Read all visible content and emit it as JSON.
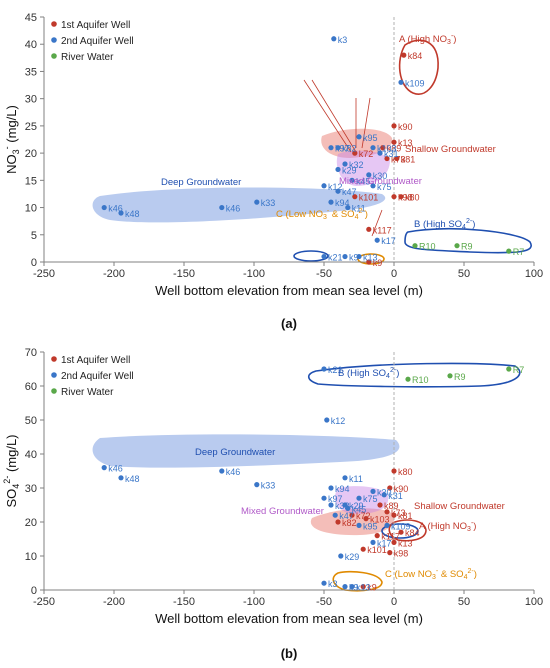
{
  "chart_data": [
    {
      "type": "scatter",
      "panel_label": "(a)",
      "xlabel": "Well bottom elevation from mean sea level (m)",
      "ylabel_main": "NO",
      "ylabel_sub": "3",
      "ylabel_sup": "-",
      "ylabel_unit": " (mg/L)",
      "xlim": [
        -250,
        100
      ],
      "ylim": [
        0,
        45
      ],
      "xticks": [
        -250,
        -200,
        -150,
        -100,
        -50,
        0,
        50,
        100
      ],
      "yticks": [
        0,
        5,
        10,
        15,
        20,
        25,
        30,
        35,
        40,
        45
      ],
      "legend": [
        "1st Aquifer Well",
        "2nd Aquifer Well",
        "River Water"
      ],
      "series": [
        {
          "name": "1st Aquifer Well",
          "color": "#c0392b",
          "points": [
            {
              "label": "k84",
              "x": 7,
              "y": 38
            },
            {
              "label": "k90",
              "x": 0,
              "y": 25
            },
            {
              "label": "k13",
              "x": 0,
              "y": 22
            },
            {
              "label": "k89",
              "x": -8,
              "y": 21
            },
            {
              "label": "k72",
              "x": -28,
              "y": 20
            },
            {
              "label": "k73",
              "x": -5,
              "y": 19
            },
            {
              "label": "k81",
              "x": 2,
              "y": 19
            },
            {
              "label": "k98",
              "x": 0,
              "y": 12
            },
            {
              "label": "k80",
              "x": 5,
              "y": 12
            },
            {
              "label": "k101",
              "x": -28,
              "y": 12
            },
            {
              "label": "k117",
              "x": -18,
              "y": 6
            },
            {
              "label": "k9",
              "x": -18,
              "y": 0
            }
          ]
        },
        {
          "name": "2nd Aquifer Well",
          "color": "#3a76c8",
          "points": [
            {
              "label": "k3",
              "x": -43,
              "y": 41
            },
            {
              "label": "k109",
              "x": 5,
              "y": 33
            },
            {
              "label": "k95",
              "x": -25,
              "y": 23
            },
            {
              "label": "k103",
              "x": -15,
              "y": 21
            },
            {
              "label": "k82",
              "x": -40,
              "y": 21
            },
            {
              "label": "k97",
              "x": -45,
              "y": 21
            },
            {
              "label": "k31",
              "x": -10,
              "y": 20
            },
            {
              "label": "k32",
              "x": -35,
              "y": 18
            },
            {
              "label": "k29",
              "x": -40,
              "y": 17
            },
            {
              "label": "k30",
              "x": -18,
              "y": 16
            },
            {
              "label": "k45",
              "x": -30,
              "y": 15
            },
            {
              "label": "k75",
              "x": -15,
              "y": 14
            },
            {
              "label": "k12",
              "x": -50,
              "y": 14
            },
            {
              "label": "k47",
              "x": -40,
              "y": 13
            },
            {
              "label": "k33",
              "x": -98,
              "y": 11
            },
            {
              "label": "k94",
              "x": -45,
              "y": 11
            },
            {
              "label": "k11",
              "x": -33,
              "y": 10
            },
            {
              "label": "k46",
              "x": -207,
              "y": 10
            },
            {
              "label": "k46",
              "x": -123,
              "y": 10
            },
            {
              "label": "k48",
              "x": -195,
              "y": 9
            },
            {
              "label": "k17",
              "x": -12,
              "y": 4
            },
            {
              "label": "k21",
              "x": -50,
              "y": 1
            },
            {
              "label": "k13",
              "x": -25,
              "y": 1
            },
            {
              "label": "k9",
              "x": -35,
              "y": 1
            }
          ]
        },
        {
          "name": "River Water",
          "color": "#5aa84a",
          "points": [
            {
              "label": "R10",
              "x": 15,
              "y": 3
            },
            {
              "label": "R9",
              "x": 45,
              "y": 3
            },
            {
              "label": "R7",
              "x": 82,
              "y": 2
            }
          ]
        }
      ],
      "annotations": [
        {
          "text": "A (High NO",
          "sub": "3",
          "sup": "-",
          "tail": ")",
          "color": "#c0392b"
        },
        {
          "text": "B (High SO",
          "sub": "4",
          "sup": "2-",
          "tail": ")",
          "color": "#1f4fb0"
        },
        {
          "text": "C (Low NO",
          "sub": "3",
          "sup": "-",
          "tail": " & SO",
          "sub2": "4",
          "sup2": "2-",
          "tail2": ")",
          "color": "#e08a00"
        },
        {
          "text": "Deep Groundwater",
          "color": "#1f4fb0"
        },
        {
          "text": "Shallow Groundwater",
          "color": "#c0392b"
        },
        {
          "text": "Mixed Groundwater",
          "color": "#b05ac8"
        }
      ]
    },
    {
      "type": "scatter",
      "panel_label": "(b)",
      "xlabel": "Well bottom elevation from mean sea level (m)",
      "ylabel_main": "SO",
      "ylabel_sub": "4",
      "ylabel_sup": "2-",
      "ylabel_unit": " (mg/L)",
      "xlim": [
        -250,
        100
      ],
      "ylim": [
        0,
        70
      ],
      "xticks": [
        -250,
        -200,
        -150,
        -100,
        -50,
        0,
        50,
        100
      ],
      "yticks": [
        0,
        10,
        20,
        30,
        40,
        50,
        60,
        70
      ],
      "legend": [
        "1st Aquifer Well",
        "2nd Aquifer Well",
        "River Water"
      ],
      "series": [
        {
          "name": "1st Aquifer Well",
          "color": "#c0392b",
          "points": [
            {
              "label": "k80",
              "x": 0,
              "y": 35
            },
            {
              "label": "k90",
              "x": -3,
              "y": 30
            },
            {
              "label": "k89",
              "x": -10,
              "y": 25
            },
            {
              "label": "k73",
              "x": -5,
              "y": 23
            },
            {
              "label": "k81",
              "x": 0,
              "y": 22
            },
            {
              "label": "k72",
              "x": -30,
              "y": 22
            },
            {
              "label": "k103",
              "x": -20,
              "y": 21
            },
            {
              "label": "k82",
              "x": -40,
              "y": 20
            },
            {
              "label": "k84",
              "x": 5,
              "y": 17
            },
            {
              "label": "k117",
              "x": -12,
              "y": 16
            },
            {
              "label": "k13",
              "x": 0,
              "y": 14
            },
            {
              "label": "k101",
              "x": -22,
              "y": 12
            },
            {
              "label": "k98",
              "x": -3,
              "y": 11
            },
            {
              "label": "k9",
              "x": -22,
              "y": 1
            }
          ]
        },
        {
          "name": "2nd Aquifer Well",
          "color": "#3a76c8",
          "points": [
            {
              "label": "k21",
              "x": -50,
              "y": 65
            },
            {
              "label": "k12",
              "x": -48,
              "y": 50
            },
            {
              "label": "k46",
              "x": -207,
              "y": 36
            },
            {
              "label": "k46",
              "x": -123,
              "y": 35
            },
            {
              "label": "k11",
              "x": -35,
              "y": 33
            },
            {
              "label": "k48",
              "x": -195,
              "y": 33
            },
            {
              "label": "k33",
              "x": -98,
              "y": 31
            },
            {
              "label": "k94",
              "x": -45,
              "y": 30
            },
            {
              "label": "k30",
              "x": -15,
              "y": 29
            },
            {
              "label": "k31",
              "x": -7,
              "y": 28
            },
            {
              "label": "k75",
              "x": -25,
              "y": 27
            },
            {
              "label": "k97",
              "x": -50,
              "y": 27
            },
            {
              "label": "k32",
              "x": -45,
              "y": 25
            },
            {
              "label": "k29",
              "x": -35,
              "y": 25
            },
            {
              "label": "k45",
              "x": -33,
              "y": 24
            },
            {
              "label": "k47",
              "x": -42,
              "y": 22
            },
            {
              "label": "k95",
              "x": -25,
              "y": 19
            },
            {
              "label": "k109",
              "x": -5,
              "y": 19
            },
            {
              "label": "k17",
              "x": -15,
              "y": 14
            },
            {
              "label": "k29",
              "x": -38,
              "y": 10
            },
            {
              "label": "k3",
              "x": -50,
              "y": 2
            },
            {
              "label": "k9",
              "x": -35,
              "y": 1
            },
            {
              "label": "k13",
              "x": -30,
              "y": 1
            }
          ]
        },
        {
          "name": "River Water",
          "color": "#5aa84a",
          "points": [
            {
              "label": "R10",
              "x": 10,
              "y": 62
            },
            {
              "label": "R9",
              "x": 40,
              "y": 63
            },
            {
              "label": "R7",
              "x": 82,
              "y": 65
            }
          ]
        }
      ],
      "annotations": [
        {
          "text": "B (High SO",
          "sub": "4",
          "sup": "2-",
          "tail": ")",
          "color": "#1f4fb0"
        },
        {
          "text": "A (High NO",
          "sub": "3",
          "sup": "-",
          "tail": ")",
          "color": "#c0392b"
        },
        {
          "text": "C (Low NO",
          "sub": "3",
          "sup": "-",
          "tail": " & SO",
          "sub2": "4",
          "sup2": "2-",
          "tail2": ")",
          "color": "#e08a00"
        },
        {
          "text": "Deep Groundwater",
          "color": "#1f4fb0"
        },
        {
          "text": "Shallow Groundwater",
          "color": "#c0392b"
        },
        {
          "text": "Mixed Groundwater",
          "color": "#b05ac8"
        }
      ]
    }
  ]
}
